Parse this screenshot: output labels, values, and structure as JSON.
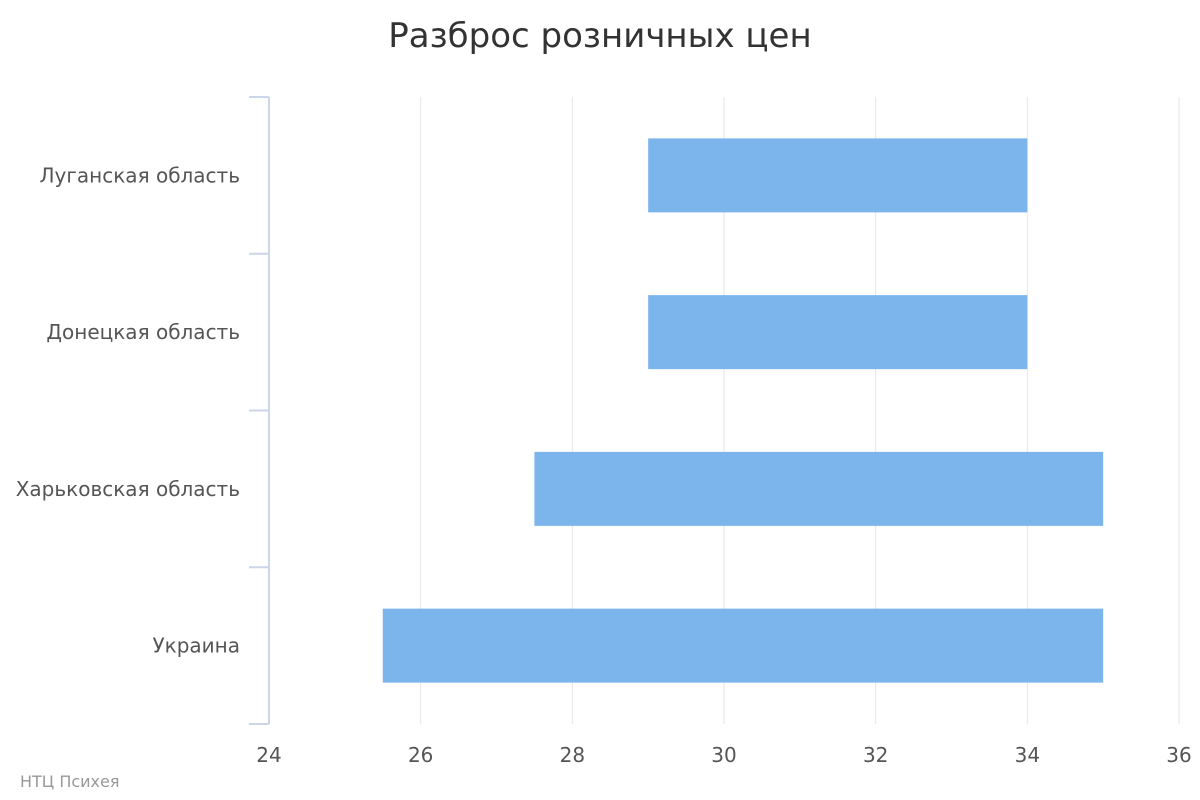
{
  "credit": "НТЦ Психея",
  "colors": {
    "bar": "#7cb5ec",
    "grid": "#e6e6e6",
    "axis": "#ccd6eb"
  },
  "chart_data": {
    "type": "bar",
    "orientation": "horizontal",
    "title": "Разброс розничных цен",
    "categories": [
      "Луганская область",
      "Донецкая область",
      "Харьковская область",
      "Украина"
    ],
    "series": [
      {
        "ranges": [
          [
            29,
            34
          ],
          [
            29,
            34
          ],
          [
            27.5,
            35
          ],
          [
            25.5,
            35
          ]
        ]
      }
    ],
    "xlim": [
      24,
      36
    ],
    "xticks": [
      "24",
      "26",
      "28",
      "30",
      "32",
      "34",
      "36"
    ],
    "grid": true,
    "legend": "none"
  }
}
